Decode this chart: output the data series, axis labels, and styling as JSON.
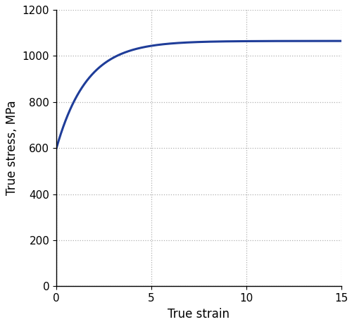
{
  "xlabel": "True strain",
  "ylabel": "True stress, MPa",
  "xlim": [
    0,
    15
  ],
  "ylim": [
    0,
    1200
  ],
  "xticks": [
    0,
    5,
    10,
    15
  ],
  "yticks": [
    0,
    200,
    400,
    600,
    800,
    1000,
    1200
  ],
  "line_color": "#1f3d99",
  "line_width": 2.2,
  "grid_color": "#b0b0b0",
  "grid_linestyle": ":",
  "background_color": "#ffffff",
  "sigma_0": 598,
  "sigma_sat": 1065,
  "hardening_rate": 0.62
}
